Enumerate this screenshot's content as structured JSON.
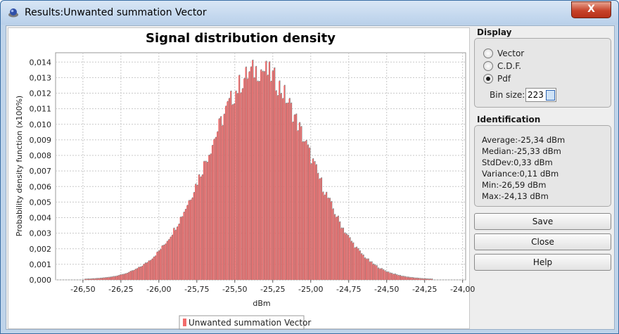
{
  "window": {
    "title": "Results:Unwanted summation Vector",
    "close_label": "X"
  },
  "display": {
    "title": "Display",
    "options": [
      {
        "label": "Vector",
        "selected": false
      },
      {
        "label": "C.D.F.",
        "selected": false
      },
      {
        "label": "Pdf",
        "selected": true
      }
    ],
    "bin_size_label": "Bin size:",
    "bin_size_value": "223"
  },
  "identification": {
    "title": "Identification",
    "stats": [
      "Average:-25,34 dBm",
      "Median:-25,33 dBm",
      "StdDev:0,33 dBm",
      "Variance:0,11 dBm",
      "Min:-26,59 dBm",
      "Max:-24,13 dBm"
    ]
  },
  "buttons": {
    "save": "Save",
    "close": "Close",
    "help": "Help"
  },
  "colors": {
    "bar": "#f26b6b",
    "bar_shadow": "#7b7b7b",
    "grid": "#c8c8c8"
  },
  "chart_data": {
    "type": "bar",
    "title": "Signal distribution density",
    "xlabel": "dBm",
    "ylabel": "Probability density function (x100%)",
    "legend": "Unwanted summation Vector",
    "legend_position": "bottom",
    "grid": true,
    "xlim": [
      -26.68,
      -23.98
    ],
    "ylim": [
      0,
      0.0146
    ],
    "xticks": [
      "-26,50",
      "-26,25",
      "-26,00",
      "-25,75",
      "-25,50",
      "-25,25",
      "-25,00",
      "-24,75",
      "-24,50",
      "-24,25",
      "-24,00"
    ],
    "yticks": [
      "0,000",
      "0,001",
      "0,002",
      "0,003",
      "0,004",
      "0,005",
      "0,006",
      "0,007",
      "0,008",
      "0,009",
      "0,010",
      "0,011",
      "0,012",
      "0,013",
      "0,014"
    ],
    "distribution": {
      "mean": -25.34,
      "stddev": 0.33,
      "peak": 0.0135,
      "min": -26.59,
      "max": -24.13,
      "bins": 223
    }
  }
}
